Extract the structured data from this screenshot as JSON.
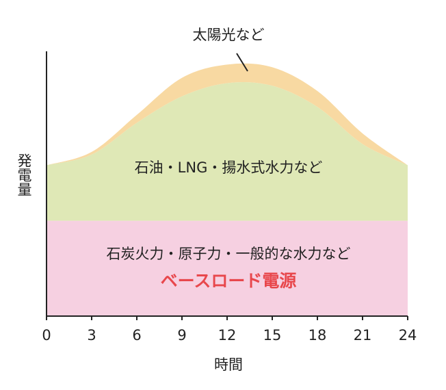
{
  "chart_data": {
    "type": "stacked-area",
    "x": [
      0,
      3,
      6,
      9,
      12,
      15,
      18,
      21,
      24
    ],
    "xlim": [
      0,
      24
    ],
    "xticks": [
      0,
      3,
      6,
      9,
      12,
      15,
      18,
      21,
      24
    ],
    "ylim": [
      0,
      100
    ],
    "xlabel": "時間",
    "ylabel": "発電量",
    "series": [
      {
        "name": "石炭火力・原子力・一般的な水力など",
        "color": "#f6d0e1",
        "values": [
          36,
          36,
          36,
          36,
          36,
          36,
          36,
          36,
          36
        ]
      },
      {
        "name": "石油・LNG・揚水式水力など",
        "color": "#dfe8b6",
        "values": [
          21,
          25,
          37,
          47,
          52,
          51,
          43,
          29,
          21
        ]
      },
      {
        "name": "太陽光など",
        "color": "#f8d9a2",
        "values": [
          0,
          1,
          3,
          7,
          7,
          7,
          6,
          4,
          0
        ]
      }
    ],
    "annotation": "ベースロード電源",
    "annotation_color": "#e8474c"
  }
}
